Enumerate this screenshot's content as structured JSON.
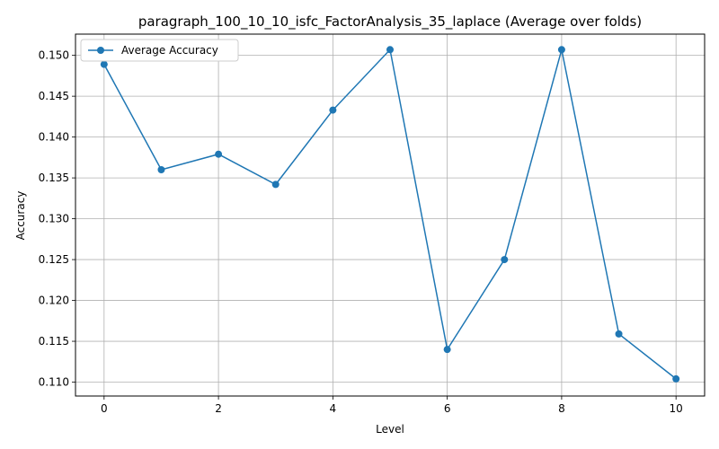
{
  "chart_data": {
    "type": "line",
    "title": "paragraph_100_10_10_isfc_FactorAnalysis_35_laplace (Average over folds)",
    "xlabel": "Level",
    "ylabel": "Accuracy",
    "xlim": [
      -0.5,
      10.5
    ],
    "ylim": [
      0.1083,
      0.1526
    ],
    "xticks": [
      0,
      2,
      4,
      6,
      8,
      10
    ],
    "xtick_labels": [
      "0",
      "2",
      "4",
      "6",
      "8",
      "10"
    ],
    "yticks": [
      0.11,
      0.115,
      0.12,
      0.125,
      0.13,
      0.135,
      0.14,
      0.145,
      0.15
    ],
    "ytick_labels": [
      "0.110",
      "0.115",
      "0.120",
      "0.125",
      "0.130",
      "0.135",
      "0.140",
      "0.145",
      "0.150"
    ],
    "grid": true,
    "legend_position": "top-left",
    "series": [
      {
        "name": "Average Accuracy",
        "color": "#1f77b4",
        "marker": "circle",
        "x": [
          0,
          1,
          2,
          3,
          4,
          5,
          6,
          7,
          8,
          9,
          10
        ],
        "y": [
          0.1489,
          0.136,
          0.1379,
          0.1342,
          0.1433,
          0.1507,
          0.114,
          0.125,
          0.1507,
          0.1159,
          0.1104
        ]
      }
    ]
  }
}
